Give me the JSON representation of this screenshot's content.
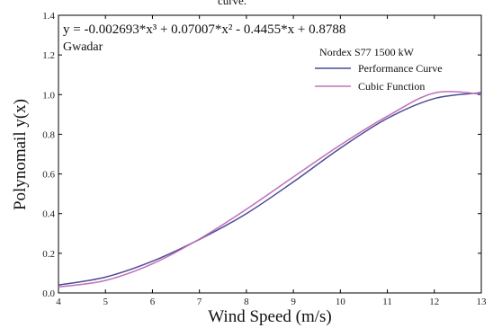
{
  "caption_fragment": "curve.",
  "chart_data": {
    "type": "line",
    "title": "",
    "xlabel": "Wind Speed (m/s)",
    "ylabel": "Polynomail y(x)",
    "xlim": [
      4,
      13
    ],
    "ylim": [
      0,
      1.4
    ],
    "x_ticks": [
      "4",
      "5",
      "6",
      "7",
      "8",
      "9",
      "10",
      "11",
      "12",
      "13"
    ],
    "y_ticks": [
      "0.0",
      "0.2",
      "0.4",
      "0.6",
      "0.8",
      "1.0",
      "1.2",
      "1.4"
    ],
    "grid": false,
    "equation": "y = -0.002693*x³ + 0.07007*x² - 0.4455*x + 0.8788",
    "location": "Gwadar",
    "legend_title": "Nordex S77 1500 kW",
    "legend_position": "top-right",
    "x": [
      4,
      5,
      6,
      7,
      8,
      9,
      10,
      11,
      12,
      13
    ],
    "series": [
      {
        "name": "Performance Curve",
        "color": "#4b4b96",
        "values": [
          0.04,
          0.08,
          0.16,
          0.27,
          0.4,
          0.56,
          0.73,
          0.88,
          0.98,
          1.01
        ]
      },
      {
        "name": "Cubic Function",
        "color": "#c070b8",
        "values": [
          0.03,
          0.063,
          0.147,
          0.272,
          0.422,
          0.585,
          0.746,
          0.891,
          1.008,
          1.003
        ]
      }
    ]
  }
}
